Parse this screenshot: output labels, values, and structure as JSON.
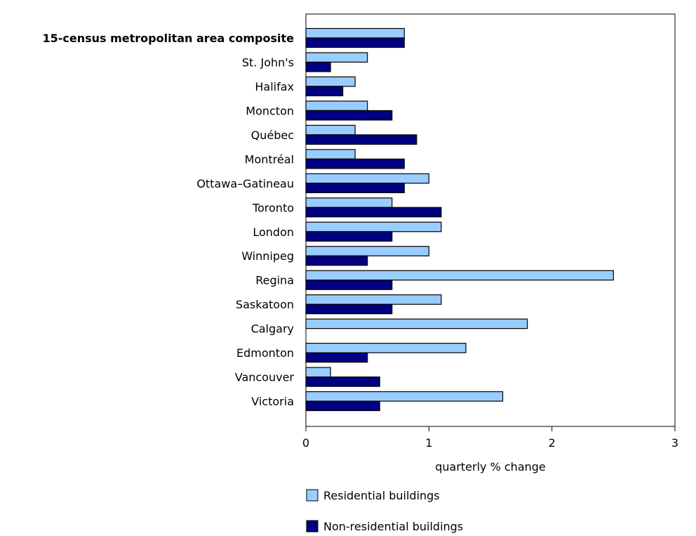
{
  "chart_data": {
    "type": "bar",
    "orientation": "horizontal",
    "categories": [
      "15-census metropolitan area composite",
      "St. John's",
      "Halifax",
      "Moncton",
      "Québec",
      "Montréal",
      "Ottawa–Gatineau",
      "Toronto",
      "London",
      "Winnipeg",
      "Regina",
      "Saskatoon",
      "Calgary",
      "Edmonton",
      "Vancouver",
      "Victoria"
    ],
    "series": [
      {
        "name": "Residential buildings",
        "color": "#99ccff",
        "values": [
          0.8,
          0.5,
          0.4,
          0.5,
          0.4,
          0.4,
          1.0,
          0.7,
          1.1,
          1.0,
          2.5,
          1.1,
          1.8,
          1.3,
          0.2,
          1.6
        ]
      },
      {
        "name": "Non-residential buildings",
        "color": "#000080",
        "values": [
          0.8,
          0.2,
          0.3,
          0.7,
          0.9,
          0.8,
          0.8,
          1.1,
          0.7,
          0.5,
          0.7,
          0.7,
          0.0,
          0.5,
          0.6,
          0.6
        ]
      }
    ],
    "xlabel": "quarterly % change",
    "xlim": [
      0,
      3
    ],
    "xticks": [
      "0",
      "1",
      "2",
      "3"
    ],
    "grid": false,
    "legend_position": "bottom-left"
  }
}
